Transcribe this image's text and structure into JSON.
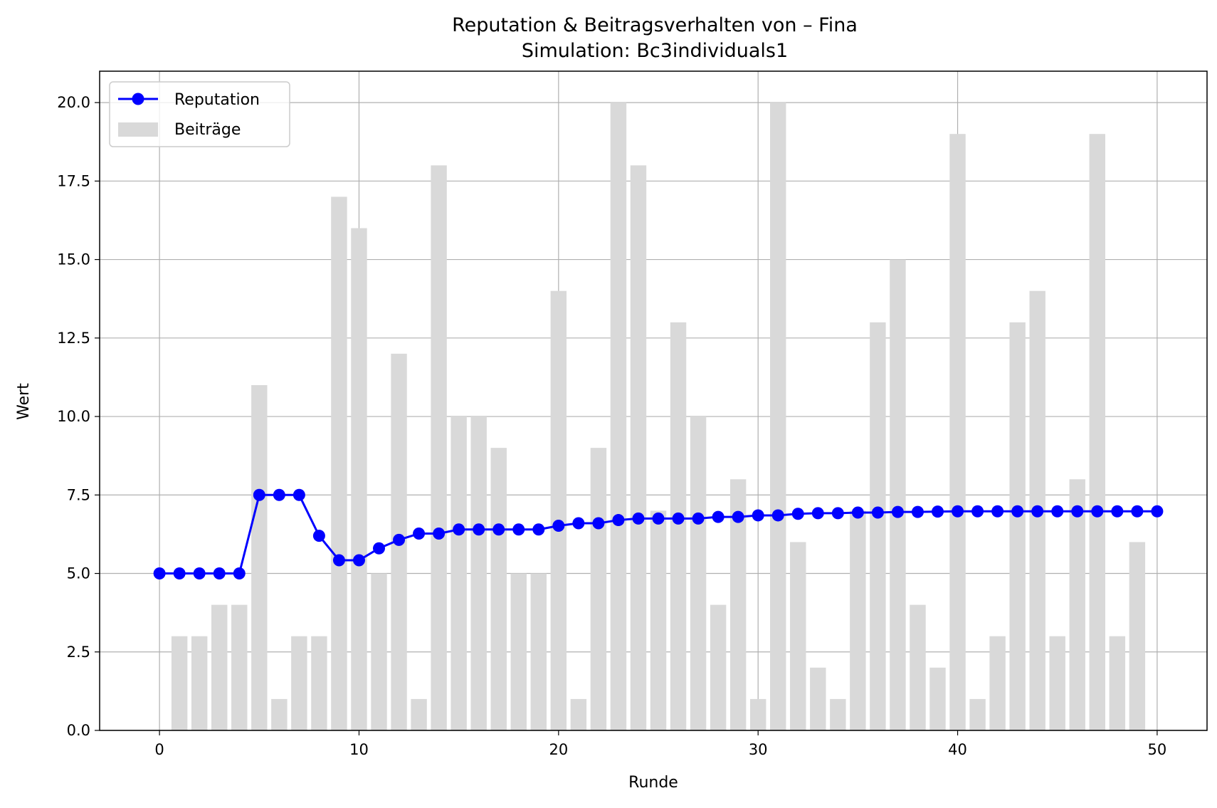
{
  "chart_data": {
    "type": "bar+line",
    "title": "Reputation & Beitragsverhalten von – Fina",
    "subtitle": "Simulation: Bc3individuals1",
    "xlabel": "Runde",
    "ylabel": "Wert",
    "xlim": [
      -3,
      52.5
    ],
    "ylim": [
      0,
      21
    ],
    "xticks": [
      "0",
      "10",
      "20",
      "30",
      "40",
      "50"
    ],
    "yticks": [
      "0.0",
      "2.5",
      "5.0",
      "7.5",
      "10.0",
      "12.5",
      "15.0",
      "17.5",
      "20.0"
    ],
    "grid": true,
    "legend_position": "top-left",
    "series": [
      {
        "name": "Reputation",
        "kind": "line",
        "color": "#0000ff",
        "x": [
          0,
          1,
          2,
          3,
          4,
          5,
          6,
          7,
          8,
          9,
          10,
          11,
          12,
          13,
          14,
          15,
          16,
          17,
          18,
          19,
          20,
          21,
          22,
          23,
          24,
          25,
          26,
          27,
          28,
          29,
          30,
          31,
          32,
          33,
          34,
          35,
          36,
          37,
          38,
          39,
          40,
          41,
          42,
          43,
          44,
          45,
          46,
          47,
          48,
          49,
          50
        ],
        "values": [
          5.0,
          5.0,
          5.0,
          5.0,
          5.0,
          7.5,
          7.5,
          7.5,
          6.2,
          5.42,
          5.42,
          5.8,
          6.07,
          6.27,
          6.27,
          6.4,
          6.4,
          6.4,
          6.4,
          6.4,
          6.52,
          6.6,
          6.6,
          6.7,
          6.75,
          6.75,
          6.75,
          6.75,
          6.8,
          6.8,
          6.85,
          6.85,
          6.9,
          6.92,
          6.92,
          6.94,
          6.94,
          6.96,
          6.96,
          6.97,
          6.98,
          6.98,
          6.98,
          6.98,
          6.98,
          6.98,
          6.98,
          6.98,
          6.98,
          6.98,
          6.98
        ]
      },
      {
        "name": "Beiträge",
        "kind": "bar",
        "color": "#d9d9d9",
        "x": [
          1,
          2,
          3,
          4,
          5,
          6,
          7,
          8,
          9,
          10,
          11,
          12,
          13,
          14,
          15,
          16,
          17,
          18,
          19,
          20,
          21,
          22,
          23,
          24,
          25,
          26,
          27,
          28,
          29,
          30,
          31,
          32,
          33,
          34,
          35,
          36,
          37,
          38,
          39,
          40,
          41,
          42,
          43,
          44,
          45,
          46,
          47,
          48,
          49
        ],
        "values": [
          3,
          3,
          4,
          4,
          11,
          1,
          3,
          3,
          17,
          16,
          5,
          12,
          1,
          18,
          10,
          10,
          9,
          5,
          5,
          14,
          1,
          9,
          20,
          18,
          7,
          13,
          10,
          4,
          8,
          1,
          20,
          6,
          2,
          1,
          7,
          13,
          15,
          4,
          2,
          19,
          1,
          3,
          13,
          14,
          3,
          8,
          19,
          3,
          6
        ]
      }
    ]
  }
}
